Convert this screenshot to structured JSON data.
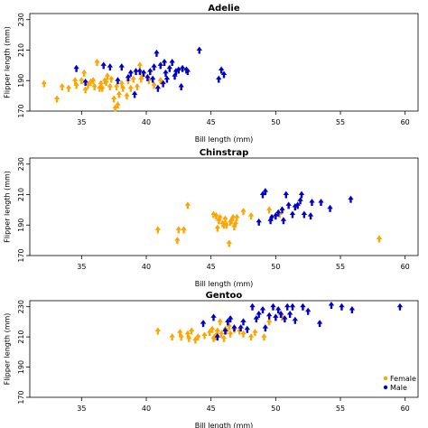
{
  "chart_data": [
    {
      "type": "scatter",
      "title": "Adelie",
      "xlabel": "Bill length (mm)",
      "ylabel": "Flipper length (mm)",
      "xlim": [
        31,
        61
      ],
      "ylim": [
        170,
        234
      ],
      "xticks": [
        35,
        40,
        45,
        50,
        55,
        60
      ],
      "yticks": [
        170,
        190,
        210,
        230
      ],
      "grid": false,
      "legend": null,
      "series": [
        {
          "name": "Female",
          "color": "#FFA500",
          "x": [
            32.1,
            33.1,
            33.5,
            34.0,
            34.5,
            34.6,
            35.0,
            35.2,
            35.3,
            35.5,
            35.7,
            35.9,
            36.0,
            36.2,
            36.4,
            36.5,
            36.6,
            36.8,
            36.9,
            37.0,
            37.2,
            37.3,
            37.5,
            37.6,
            37.7,
            37.8,
            37.9,
            38.1,
            38.2,
            38.5,
            38.6,
            38.8,
            39.0,
            39.3,
            39.5,
            39.6,
            39.7,
            40.2,
            40.6,
            41.1
          ],
          "y": [
            188,
            178,
            186,
            185,
            190,
            187,
            190,
            195,
            184,
            187,
            189,
            190,
            186,
            202,
            185,
            188,
            185,
            190,
            189,
            193,
            186,
            191,
            178,
            172,
            186,
            174,
            181,
            188,
            185,
            180,
            190,
            185,
            191,
            186,
            200,
            191,
            193,
            190,
            187,
            190
          ]
        },
        {
          "name": "Male",
          "color": "#0000CD",
          "x": [
            34.6,
            35.3,
            36.7,
            37.2,
            37.8,
            38.1,
            38.6,
            38.8,
            39.1,
            39.2,
            39.5,
            39.8,
            40.1,
            40.3,
            40.5,
            40.6,
            40.8,
            40.9,
            41.1,
            41.3,
            41.4,
            41.5,
            41.6,
            41.8,
            42.0,
            42.2,
            42.3,
            42.5,
            42.7,
            42.8,
            43.1,
            43.2,
            44.1,
            45.6,
            45.8,
            46.0
          ],
          "y": [
            198,
            189,
            200,
            199,
            190,
            199,
            192,
            195,
            181,
            196,
            196,
            195,
            192,
            196,
            191,
            199,
            208,
            185,
            200,
            188,
            202,
            195,
            191,
            198,
            202,
            193,
            196,
            197,
            186,
            198,
            197,
            196,
            210,
            191,
            197,
            194
          ]
        }
      ]
    },
    {
      "type": "scatter",
      "title": "Chinstrap",
      "xlabel": "Bill length (mm)",
      "ylabel": "Flipper length (mm)",
      "xlim": [
        31,
        61
      ],
      "ylim": [
        170,
        234
      ],
      "xticks": [
        35,
        40,
        45,
        50,
        55,
        60
      ],
      "yticks": [
        170,
        190,
        210,
        230
      ],
      "grid": false,
      "legend": null,
      "series": [
        {
          "name": "Female",
          "color": "#FFA500",
          "x": [
            40.9,
            42.4,
            42.5,
            42.9,
            43.2,
            45.2,
            45.4,
            45.5,
            45.6,
            45.7,
            45.9,
            46.0,
            46.1,
            46.2,
            46.4,
            46.5,
            46.6,
            46.7,
            46.8,
            46.9,
            47.0,
            47.5,
            48.1,
            49.5,
            50.3,
            58.0
          ],
          "y": [
            187,
            180,
            187,
            187,
            203,
            197,
            196,
            188,
            193,
            195,
            191,
            190,
            194,
            190,
            178,
            192,
            193,
            195,
            189,
            191,
            195,
            199,
            196,
            200,
            197,
            181
          ]
        },
        {
          "name": "Male",
          "color": "#0000CD",
          "x": [
            48.7,
            49.0,
            49.2,
            49.6,
            49.7,
            50.0,
            50.2,
            50.5,
            50.6,
            50.8,
            51.0,
            51.3,
            51.5,
            51.7,
            51.9,
            52.0,
            52.2,
            52.7,
            52.8,
            53.5,
            54.2,
            55.8
          ],
          "y": [
            192,
            210,
            212,
            193,
            195,
            196,
            198,
            200,
            193,
            210,
            203,
            197,
            202,
            203,
            206,
            210,
            197,
            196,
            205,
            205,
            201,
            207
          ]
        }
      ]
    },
    {
      "type": "scatter",
      "title": "Gentoo",
      "xlabel": "Bill length (mm)",
      "ylabel": "Flipper length (mm)",
      "xlim": [
        31,
        61
      ],
      "ylim": [
        170,
        234
      ],
      "xticks": [
        35,
        40,
        45,
        50,
        55,
        60
      ],
      "yticks": [
        170,
        190,
        210,
        230
      ],
      "grid": false,
      "legend": "bottom-right",
      "series": [
        {
          "name": "Female",
          "color": "#FFA500",
          "x": [
            40.9,
            42.0,
            42.6,
            42.7,
            43.2,
            43.3,
            43.5,
            43.8,
            44.0,
            44.4,
            44.5,
            44.9,
            45.1,
            45.2,
            45.3,
            45.4,
            45.5,
            45.7,
            45.8,
            46.0,
            46.1,
            46.2,
            46.4,
            46.5,
            46.8,
            47.2,
            47.5,
            48.1,
            48.4,
            49.1,
            49.5,
            50.5
          ],
          "y": [
            214,
            210,
            213,
            210,
            212,
            209,
            214,
            208,
            210,
            219,
            211,
            213,
            215,
            209,
            210,
            211,
            214,
            220,
            212,
            209,
            215,
            214,
            217,
            212,
            215,
            214,
            212,
            210,
            213,
            210,
            220,
            223
          ]
        },
        {
          "name": "Male",
          "color": "#0000CD",
          "x": [
            44.4,
            45.2,
            45.5,
            46.1,
            46.3,
            46.5,
            46.8,
            47.3,
            47.5,
            47.8,
            48.2,
            48.5,
            48.7,
            49.0,
            49.2,
            49.5,
            49.8,
            50.0,
            50.2,
            50.4,
            50.7,
            50.9,
            51.1,
            51.3,
            51.5,
            52.1,
            52.5,
            53.4,
            54.3,
            55.1,
            55.9,
            59.6
          ],
          "y": [
            219,
            223,
            210,
            214,
            220,
            222,
            216,
            216,
            220,
            215,
            230,
            222,
            225,
            228,
            216,
            224,
            230,
            223,
            228,
            225,
            222,
            230,
            225,
            230,
            221,
            230,
            227,
            219,
            231,
            230,
            228,
            230
          ]
        }
      ]
    }
  ]
}
